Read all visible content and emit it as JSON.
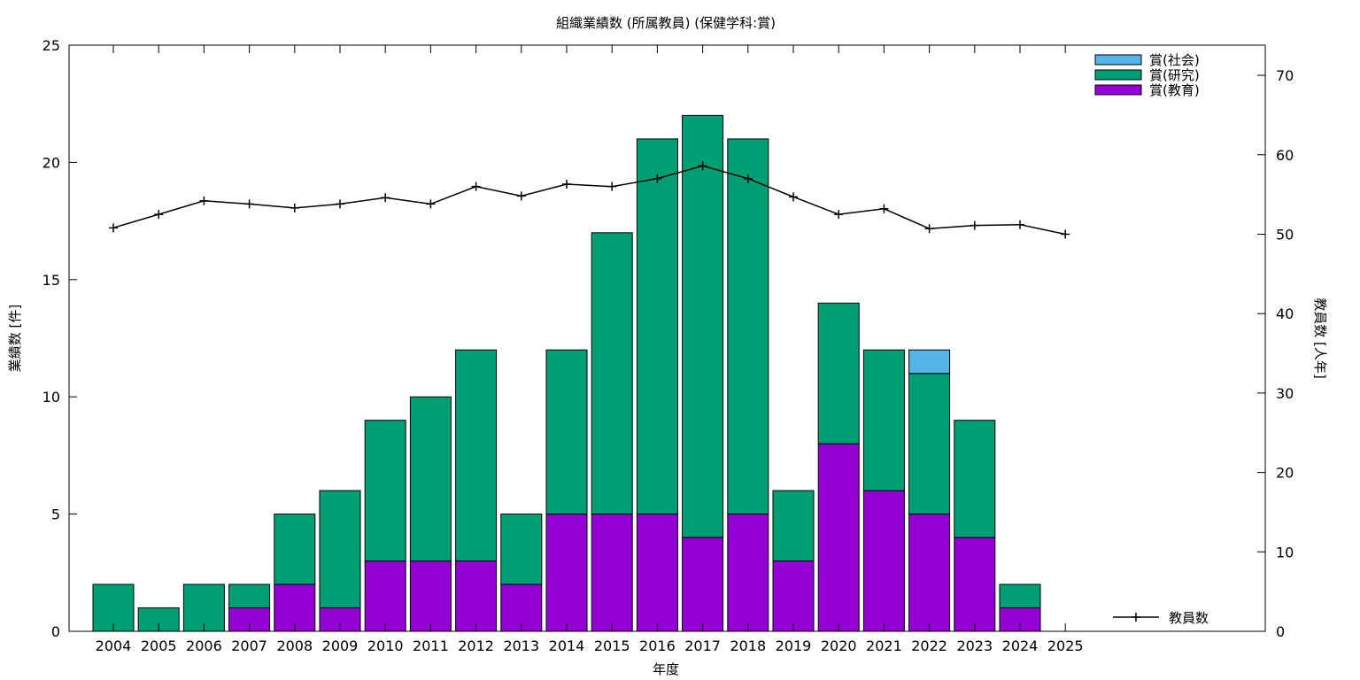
{
  "chart_data": {
    "type": "bar",
    "title": "組織業績数 (所属教員) (保健学科:賞)",
    "xlabel": "年度",
    "ylabel": "業績数 [件]",
    "y2label": "教員数 [人年]",
    "categories": [
      "2004",
      "2005",
      "2006",
      "2007",
      "2008",
      "2009",
      "2010",
      "2011",
      "2012",
      "2013",
      "2014",
      "2015",
      "2016",
      "2017",
      "2018",
      "2019",
      "2020",
      "2021",
      "2022",
      "2023",
      "2024",
      "2025"
    ],
    "ylim": [
      0,
      25
    ],
    "y2lim": [
      0,
      73.8
    ],
    "yticks": [
      0,
      5,
      10,
      15,
      20,
      25
    ],
    "y2ticks": [
      0,
      10,
      20,
      30,
      40,
      50,
      60,
      70
    ],
    "stacked": true,
    "legend_position": "top-right",
    "series": [
      {
        "name": "賞(教育)",
        "color": "#9400d3",
        "values": [
          0,
          0,
          0,
          1,
          2,
          1,
          3,
          3,
          3,
          2,
          5,
          5,
          5,
          4,
          5,
          3,
          8,
          6,
          5,
          4,
          1,
          0
        ]
      },
      {
        "name": "賞(研究)",
        "color": "#009e73",
        "values": [
          2,
          1,
          2,
          1,
          3,
          5,
          6,
          7,
          9,
          3,
          7,
          12,
          16,
          18,
          16,
          3,
          6,
          6,
          6,
          5,
          1,
          0
        ]
      },
      {
        "name": "賞(社会)",
        "color": "#56b4e9",
        "values": [
          0,
          0,
          0,
          0,
          0,
          0,
          0,
          0,
          0,
          0,
          0,
          0,
          0,
          0,
          0,
          0,
          0,
          0,
          1,
          0,
          0,
          0
        ]
      }
    ],
    "line_series": {
      "name": "教員数",
      "axis": "y2",
      "color": "#000000",
      "values": [
        50.8,
        52.5,
        54.2,
        53.8,
        53.3,
        53.8,
        54.6,
        53.8,
        56.0,
        54.8,
        56.3,
        56.0,
        57.0,
        58.6,
        57.0,
        54.7,
        52.5,
        53.2,
        50.7,
        51.1,
        51.2,
        50.0
      ]
    }
  }
}
